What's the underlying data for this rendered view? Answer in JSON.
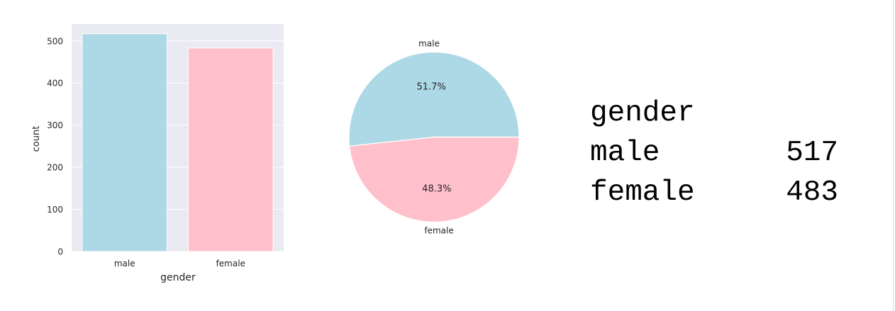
{
  "chart_data": [
    {
      "type": "bar",
      "categories": [
        "male",
        "female"
      ],
      "values": [
        517,
        483
      ],
      "colors": [
        "#add8e6",
        "#ffc0cb"
      ],
      "xlabel": "gender",
      "ylabel": "count",
      "ylim": [
        0,
        540
      ],
      "yticks": [
        0,
        100,
        200,
        300,
        400,
        500
      ],
      "grid": true,
      "background": "#eaeaf2"
    },
    {
      "type": "pie",
      "labels": [
        "male",
        "female"
      ],
      "values": [
        517,
        483
      ],
      "percent_labels": [
        "51.7%",
        "48.3%"
      ],
      "colors": [
        "#add8e6",
        "#ffc0cb"
      ]
    }
  ],
  "summary": {
    "title": "gender",
    "rows": [
      {
        "label": "male",
        "value": "517"
      },
      {
        "label": "female",
        "value": "483"
      }
    ]
  }
}
